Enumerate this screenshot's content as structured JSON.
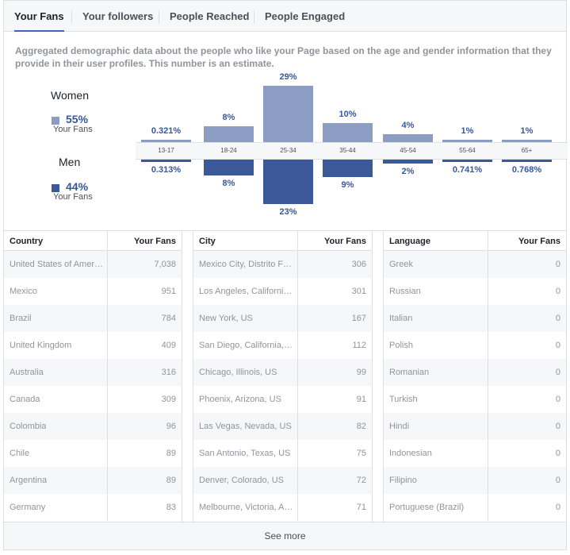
{
  "tabs": [
    {
      "label": "Your Fans",
      "active": true
    },
    {
      "label": "Your followers",
      "active": false
    },
    {
      "label": "People Reached",
      "active": false
    },
    {
      "label": "People Engaged",
      "active": false
    }
  ],
  "description": "Aggregated demographic data about the people who like your Page based on the age and gender information that they provide in their user profiles. This number is an estimate.",
  "legend": {
    "women": {
      "label": "Women",
      "percent": "55%",
      "sub": "Your Fans",
      "color": "#8b9dc3"
    },
    "men": {
      "label": "Men",
      "percent": "44%",
      "sub": "Your Fans",
      "color": "#3b5998"
    }
  },
  "chart_data": {
    "type": "bar",
    "categories": [
      "13-17",
      "18-24",
      "25-34",
      "35-44",
      "45-54",
      "55-64",
      "65+"
    ],
    "series": [
      {
        "name": "Women",
        "values": [
          0.321,
          8,
          29,
          10,
          4,
          1,
          1
        ],
        "labels": [
          "0.321%",
          "8%",
          "29%",
          "10%",
          "4%",
          "1%",
          "1%"
        ]
      },
      {
        "name": "Men",
        "values": [
          0.313,
          8,
          23,
          9,
          2,
          0.741,
          0.768
        ],
        "labels": [
          "0.313%",
          "8%",
          "23%",
          "9%",
          "2%",
          "0.741%",
          "0.768%"
        ]
      }
    ],
    "ylim": [
      0,
      29
    ]
  },
  "tables": {
    "country": {
      "col1": "Country",
      "col2": "Your Fans",
      "rows": [
        [
          "United States of America",
          "7,038"
        ],
        [
          "Mexico",
          "951"
        ],
        [
          "Brazil",
          "784"
        ],
        [
          "United Kingdom",
          "409"
        ],
        [
          "Australia",
          "316"
        ],
        [
          "Canada",
          "309"
        ],
        [
          "Colombia",
          "96"
        ],
        [
          "Chile",
          "89"
        ],
        [
          "Argentina",
          "89"
        ],
        [
          "Germany",
          "83"
        ]
      ]
    },
    "city": {
      "col1": "City",
      "col2": "Your Fans",
      "rows": [
        [
          "Mexico City, Distrito Fe...",
          "306"
        ],
        [
          "Los Angeles, California...",
          "301"
        ],
        [
          "New York, US",
          "167"
        ],
        [
          "San Diego, California, US",
          "112"
        ],
        [
          "Chicago, Illinois, US",
          "99"
        ],
        [
          "Phoenix, Arizona, US",
          "91"
        ],
        [
          "Las Vegas, Nevada, US",
          "82"
        ],
        [
          "San Antonio, Texas, US",
          "75"
        ],
        [
          "Denver, Colorado, US",
          "72"
        ],
        [
          "Melbourne, Victoria, Au...",
          "71"
        ]
      ]
    },
    "language": {
      "col1": "Language",
      "col2": "Your Fans",
      "rows": [
        [
          "Greek",
          "0"
        ],
        [
          "Russian",
          "0"
        ],
        [
          "Italian",
          "0"
        ],
        [
          "Polish",
          "0"
        ],
        [
          "Romanian",
          "0"
        ],
        [
          "Turkish",
          "0"
        ],
        [
          "Hindi",
          "0"
        ],
        [
          "Indonesian",
          "0"
        ],
        [
          "Filipino",
          "0"
        ],
        [
          "Portuguese (Brazil)",
          "0"
        ]
      ]
    }
  },
  "see_more": "See more"
}
